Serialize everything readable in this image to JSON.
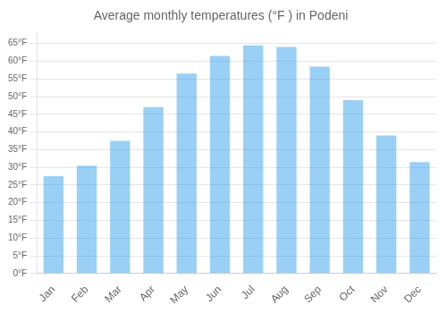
{
  "chart_data": {
    "type": "bar",
    "title": "Average monthly temperatures (°F ) in Podeni",
    "categories": [
      "Jan",
      "Feb",
      "Mar",
      "Apr",
      "May",
      "Jun",
      "Jul",
      "Aug",
      "Sep",
      "Oct",
      "Nov",
      "Dec"
    ],
    "values": [
      27.5,
      30.5,
      37.5,
      47.0,
      56.5,
      61.5,
      64.5,
      64.0,
      58.5,
      49.0,
      39.0,
      31.5
    ],
    "ylim": [
      0,
      68
    ],
    "yticks": [
      {
        "value": 0,
        "label": "0°F"
      },
      {
        "value": 5,
        "label": "5°F"
      },
      {
        "value": 10,
        "label": "10°F"
      },
      {
        "value": 15,
        "label": "15°F"
      },
      {
        "value": 20,
        "label": "20°F"
      },
      {
        "value": 25,
        "label": "25°F"
      },
      {
        "value": 30,
        "label": "30°F"
      },
      {
        "value": 35,
        "label": "35°F"
      },
      {
        "value": 40,
        "label": "40°F"
      },
      {
        "value": 45,
        "label": "45°F"
      },
      {
        "value": 50,
        "label": "50°F"
      },
      {
        "value": 55,
        "label": "55°F"
      },
      {
        "value": 60,
        "label": "60°F"
      },
      {
        "value": 65,
        "label": "65°F"
      }
    ],
    "grid": true
  }
}
